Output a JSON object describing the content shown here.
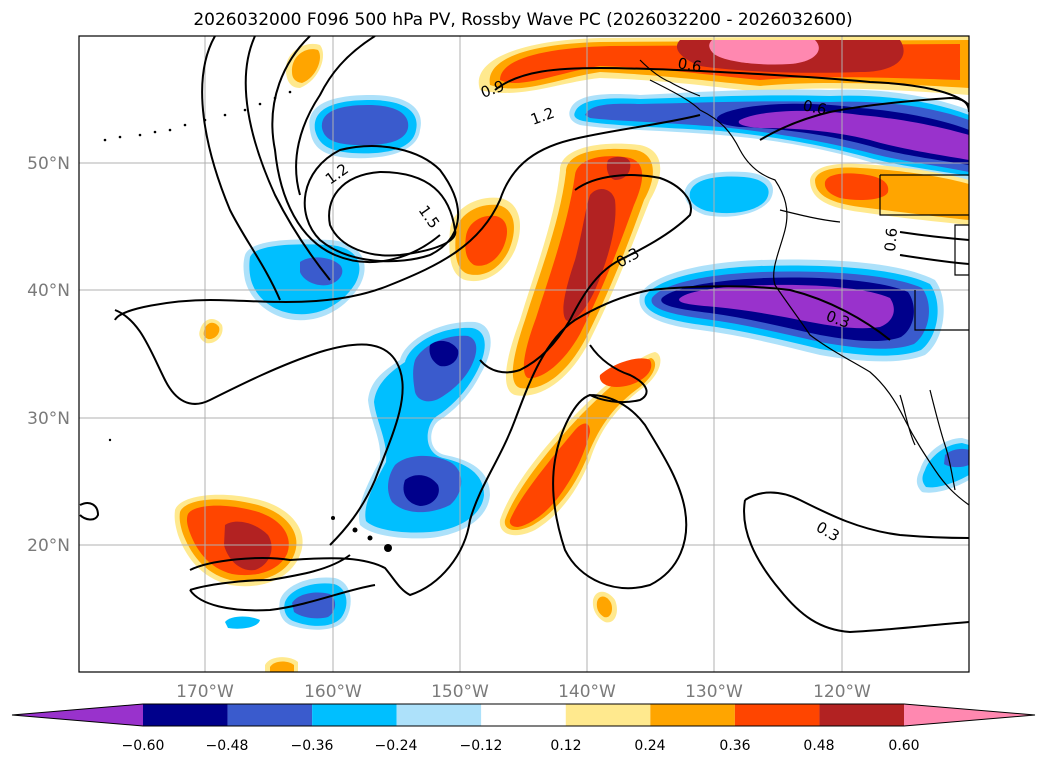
{
  "title": "2026032000 F096 500 hPa PV, Rossby Wave PC (2026032200 - 2026032600)",
  "lat_labels": [
    "50°N",
    "40°N",
    "30°N",
    "20°N"
  ],
  "lon_labels": [
    "170°W",
    "160°W",
    "150°W",
    "140°W",
    "130°W",
    "120°W"
  ],
  "colorbar": {
    "tick_labels": [
      "−0.60",
      "−0.48",
      "−0.36",
      "−0.24",
      "−0.12",
      "0.12",
      "0.24",
      "0.36",
      "0.48",
      "0.60"
    ],
    "colors": [
      "#9932CC",
      "#00008B",
      "#3A5BCD",
      "#00BFFF",
      "#ADE1FA",
      "#FFFFFF",
      "#FFE98E",
      "#FFA500",
      "#FF4500",
      "#B22222",
      "#FF88B0"
    ]
  },
  "contour_labels": [
    "0.9",
    "1.2",
    "1.2",
    "1.5",
    "0.6",
    "0.6",
    "0.3",
    "0.6",
    "0.3",
    "0.3"
  ],
  "colors": {
    "contour": "#000000",
    "gridline": "#b0b0b0",
    "coastline": "#000000"
  }
}
